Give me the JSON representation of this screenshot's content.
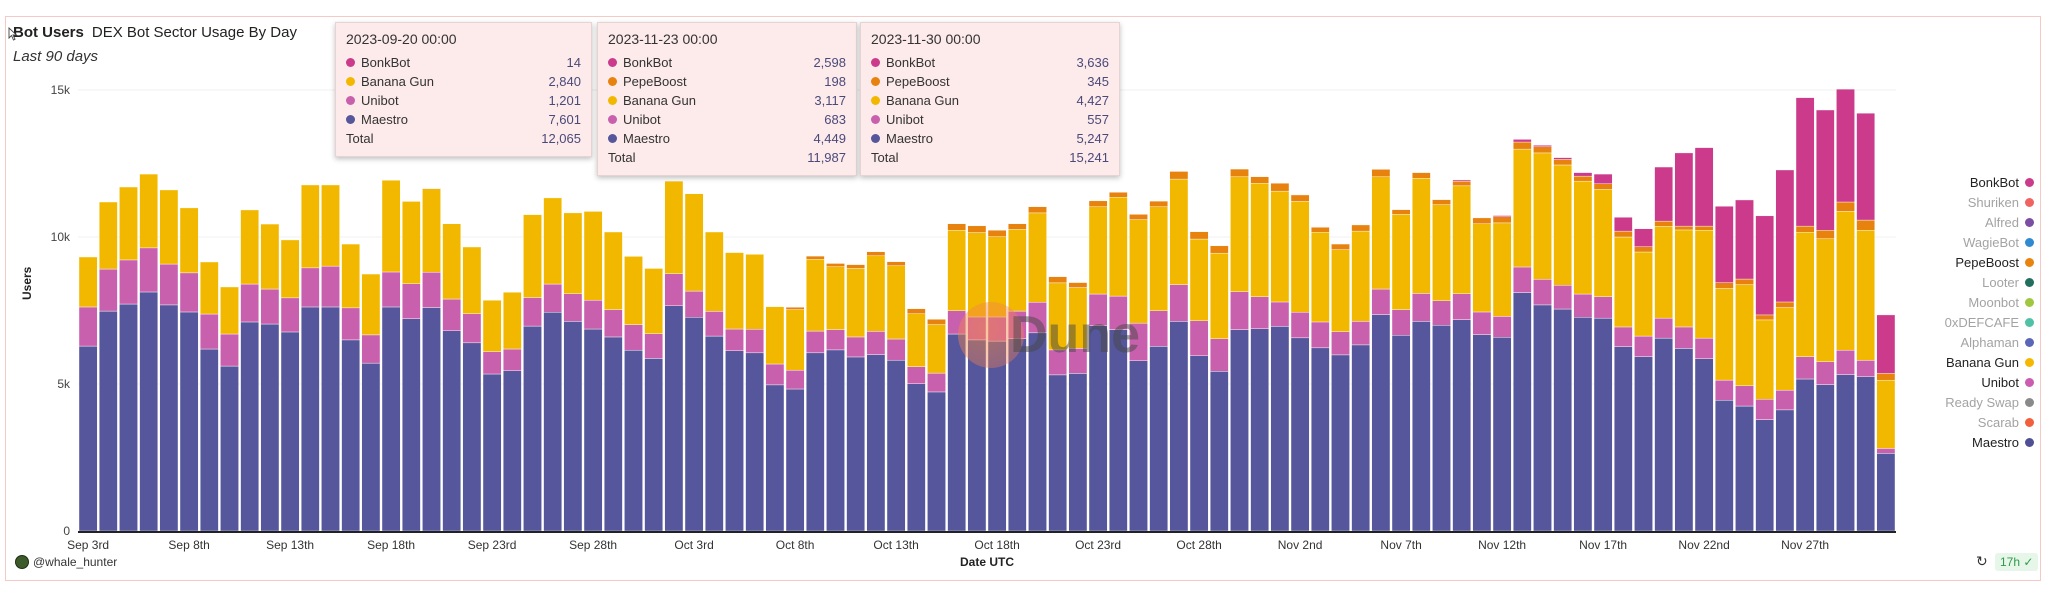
{
  "header": {
    "title": "Bot Users",
    "query_name": "DEX Bot Sector Usage By Day",
    "subtitle": "Last 90 days"
  },
  "footer": {
    "author": "@whale_hunter",
    "refresh_age": "17h",
    "badge_check": "✓",
    "refresh_icon": "↻"
  },
  "colors": {
    "Maestro": "#55569b",
    "Unibot": "#c960ad",
    "Banana Gun": "#f2b800",
    "PepeBoost": "#e8820f",
    "BonkBot": "#cc3b8b",
    "card_border": "#f6c9c6",
    "tooltip_bg": "#fdeaea"
  },
  "legend": [
    {
      "name": "BonkBot",
      "color": "#cc3b8b",
      "active": true
    },
    {
      "name": "Shuriken",
      "color": "#ef6461",
      "active": false
    },
    {
      "name": "Alfred",
      "color": "#7c4ea3",
      "active": false
    },
    {
      "name": "WagieBot",
      "color": "#2f8bd1",
      "active": false
    },
    {
      "name": "PepeBoost",
      "color": "#e8830e",
      "active": true
    },
    {
      "name": "Looter",
      "color": "#226f5e",
      "active": false
    },
    {
      "name": "Moonbot",
      "color": "#9fc840",
      "active": false
    },
    {
      "name": "0xDEFCAFE",
      "color": "#4fc1a4",
      "active": false
    },
    {
      "name": "Alphaman",
      "color": "#5a67b8",
      "active": false
    },
    {
      "name": "Banana Gun",
      "color": "#f5b800",
      "active": true
    },
    {
      "name": "Unibot",
      "color": "#cc5cb0",
      "active": true
    },
    {
      "name": "Ready Swap",
      "color": "#8a8a8a",
      "active": false
    },
    {
      "name": "Scarab",
      "color": "#f25f3c",
      "active": false
    },
    {
      "name": "Maestro",
      "color": "#4f4f96",
      "active": true
    }
  ],
  "tooltips": [
    {
      "date": "2023-09-20 00:00",
      "rows": [
        {
          "name": "BonkBot",
          "value": "14",
          "color": "#cc3b8b"
        },
        {
          "name": "Banana Gun",
          "value": "2,840",
          "color": "#f2b800"
        },
        {
          "name": "Unibot",
          "value": "1,201",
          "color": "#c960ad"
        },
        {
          "name": "Maestro",
          "value": "7,601",
          "color": "#55569b"
        }
      ],
      "total_label": "Total",
      "total": "12,065"
    },
    {
      "date": "2023-11-23 00:00",
      "rows": [
        {
          "name": "BonkBot",
          "value": "2,598",
          "color": "#cc3b8b"
        },
        {
          "name": "PepeBoost",
          "value": "198",
          "color": "#e8820f"
        },
        {
          "name": "Banana Gun",
          "value": "3,117",
          "color": "#f2b800"
        },
        {
          "name": "Unibot",
          "value": "683",
          "color": "#c960ad"
        },
        {
          "name": "Maestro",
          "value": "4,449",
          "color": "#55569b"
        }
      ],
      "total_label": "Total",
      "total": "11,987"
    },
    {
      "date": "2023-11-30 00:00",
      "rows": [
        {
          "name": "BonkBot",
          "value": "3,636",
          "color": "#cc3b8b"
        },
        {
          "name": "PepeBoost",
          "value": "345",
          "color": "#e8820f"
        },
        {
          "name": "Banana Gun",
          "value": "4,427",
          "color": "#f2b800"
        },
        {
          "name": "Unibot",
          "value": "557",
          "color": "#c960ad"
        },
        {
          "name": "Maestro",
          "value": "5,247",
          "color": "#55569b"
        }
      ],
      "total_label": "Total",
      "total": "15,241"
    }
  ],
  "watermark": "Dune",
  "chart_data": {
    "type": "bar",
    "stacked": true,
    "title": "DEX Bot Sector Usage By Day",
    "xlabel": "Date UTC",
    "ylabel": "Users",
    "x_start": "2023-09-03",
    "x_interval": "1 day",
    "x_count": 90,
    "x_tick_labels": [
      "Sep 3rd",
      "Sep 8th",
      "Sep 13th",
      "Sep 18th",
      "Sep 23rd",
      "Sep 28th",
      "Oct 3rd",
      "Oct 8th",
      "Oct 13th",
      "Oct 18th",
      "Oct 23rd",
      "Oct 28th",
      "Nov 2nd",
      "Nov 7th",
      "Nov 12th",
      "Nov 17th",
      "Nov 22nd",
      "Nov 27th"
    ],
    "x_tick_every": 5,
    "y_ticks": [
      {
        "value": 0,
        "label": "0"
      },
      {
        "value": 5000,
        "label": "5k"
      },
      {
        "value": 10000,
        "label": "10k"
      },
      {
        "value": 15000,
        "label": "15k"
      }
    ],
    "ylim": [
      0,
      15000
    ],
    "grid": true,
    "legend_position": "right",
    "series": [
      {
        "name": "Maestro",
        "values": [
          6290,
          7480,
          7720,
          8130,
          7690,
          7450,
          6190,
          5610,
          7110,
          7040,
          6770,
          7620,
          7620,
          6500,
          5710,
          7620,
          7220,
          7601,
          6810,
          6400,
          5340,
          5450,
          6970,
          7440,
          7130,
          6870,
          6600,
          6150,
          5870,
          7660,
          7270,
          6630,
          6130,
          6060,
          4970,
          4830,
          6060,
          6160,
          5920,
          6000,
          5810,
          5010,
          4730,
          6700,
          6500,
          6460,
          6540,
          6740,
          5310,
          5360,
          6980,
          6850,
          5790,
          6280,
          7130,
          5960,
          5430,
          6850,
          6880,
          6960,
          6570,
          6230,
          5990,
          6330,
          7360,
          6660,
          7130,
          7000,
          7190,
          6680,
          6590,
          8110,
          7690,
          7550,
          7270,
          7240,
          6270,
          5930,
          6560,
          6210,
          5860,
          4449,
          4250,
          3790,
          4120,
          5170,
          4980,
          5320,
          5247,
          2640
        ]
      },
      {
        "name": "Unibot",
        "values": [
          1330,
          1430,
          1500,
          1500,
          1390,
          1330,
          1190,
          1090,
          1290,
          1190,
          1160,
          1330,
          1390,
          1090,
          960,
          1190,
          1190,
          1201,
          1080,
          990,
          760,
          740,
          970,
          960,
          940,
          980,
          930,
          870,
          840,
          1090,
          890,
          840,
          740,
          800,
          710,
          640,
          740,
          690,
          680,
          790,
          720,
          580,
          640,
          790,
          780,
          820,
          940,
          1040,
          850,
          850,
          1080,
          1140,
          1280,
          1210,
          1250,
          1190,
          1110,
          1290,
          1090,
          830,
          870,
          880,
          790,
          800,
          870,
          870,
          950,
          830,
          880,
          770,
          710,
          870,
          870,
          810,
          790,
          730,
          670,
          700,
          680,
          730,
          700,
          683,
          690,
          690,
          670,
          760,
          780,
          830,
          557,
          170
        ]
      },
      {
        "name": "Banana Gun",
        "values": [
          1700,
          2280,
          2480,
          2510,
          2520,
          2210,
          1770,
          1600,
          2520,
          2210,
          1970,
          2820,
          2760,
          2170,
          2070,
          3120,
          2800,
          2840,
          2560,
          2270,
          1750,
          1930,
          2820,
          2930,
          2750,
          3020,
          2640,
          2320,
          2220,
          3150,
          3310,
          2700,
          2600,
          2550,
          1950,
          2060,
          2440,
          2140,
          2330,
          2570,
          2490,
          1800,
          1650,
          2740,
          2870,
          2730,
          2780,
          3040,
          2280,
          2070,
          2970,
          3360,
          3520,
          3540,
          3590,
          2780,
          2910,
          3910,
          3860,
          3770,
          3770,
          3050,
          2790,
          3070,
          3820,
          3240,
          3920,
          3270,
          3670,
          3000,
          3180,
          4010,
          4300,
          4090,
          3840,
          3650,
          3060,
          2860,
          3120,
          3300,
          3670,
          3117,
          3440,
          2700,
          2810,
          4230,
          4180,
          4720,
          4427,
          2320
        ]
      },
      {
        "name": "PepeBoost",
        "values": [
          0,
          0,
          0,
          0,
          0,
          0,
          0,
          0,
          0,
          0,
          0,
          0,
          0,
          0,
          0,
          0,
          0,
          0,
          0,
          0,
          0,
          0,
          0,
          0,
          0,
          0,
          0,
          0,
          0,
          0,
          0,
          0,
          0,
          0,
          0,
          80,
          110,
          110,
          130,
          140,
          140,
          170,
          180,
          220,
          230,
          220,
          190,
          210,
          210,
          170,
          200,
          170,
          180,
          190,
          260,
          250,
          250,
          260,
          220,
          270,
          220,
          170,
          190,
          210,
          250,
          160,
          190,
          170,
          160,
          200,
          210,
          240,
          210,
          190,
          170,
          190,
          200,
          180,
          180,
          130,
          140,
          198,
          190,
          170,
          190,
          210,
          290,
          320,
          345,
          230
        ]
      },
      {
        "name": "BonkBot",
        "values": [
          0,
          0,
          0,
          0,
          0,
          0,
          0,
          0,
          0,
          0,
          0,
          0,
          0,
          0,
          0,
          0,
          0,
          14,
          0,
          0,
          0,
          0,
          0,
          0,
          0,
          0,
          0,
          0,
          0,
          0,
          0,
          0,
          0,
          0,
          0,
          0,
          0,
          0,
          0,
          0,
          0,
          0,
          0,
          0,
          0,
          0,
          0,
          0,
          0,
          0,
          0,
          0,
          0,
          0,
          0,
          0,
          0,
          0,
          0,
          0,
          0,
          0,
          0,
          0,
          0,
          0,
          0,
          0,
          40,
          0,
          40,
          90,
          50,
          60,
          120,
          330,
          470,
          610,
          1840,
          2490,
          2670,
          2598,
          2690,
          3370,
          4490,
          4370,
          4090,
          3840,
          3636,
          1990
        ]
      }
    ]
  }
}
